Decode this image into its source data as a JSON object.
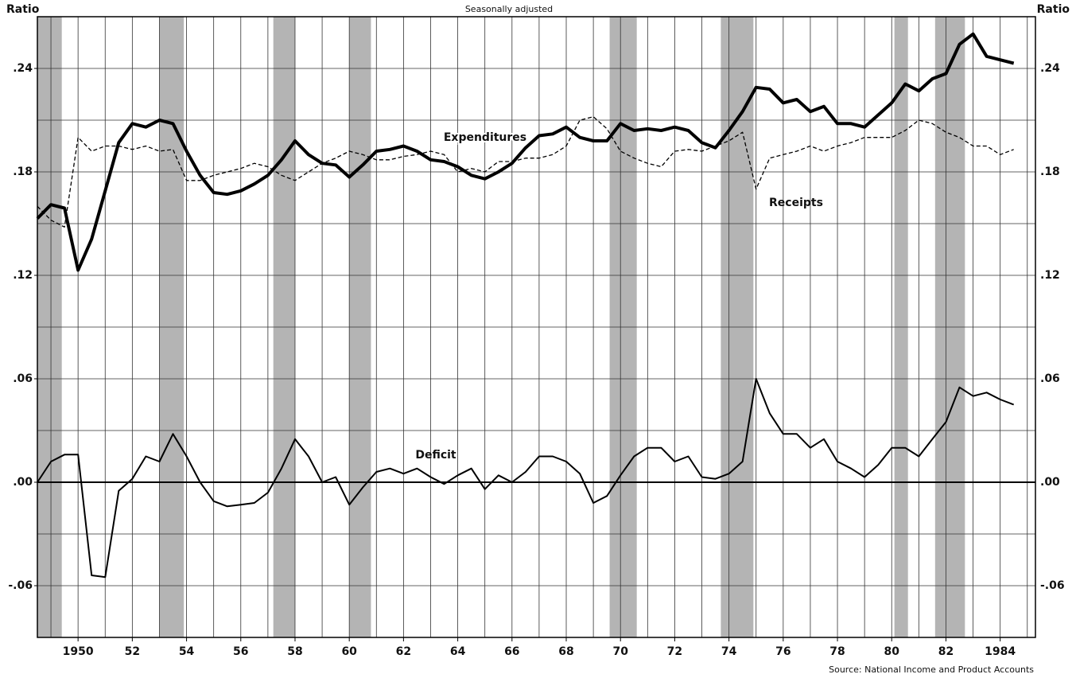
{
  "chart_data": {
    "type": "line",
    "subtitle": "Seasonally adjusted",
    "ylabel": "Ratio",
    "source": "Source: National Income and Product Accounts",
    "annotations": [
      "Expenditures",
      "Receipts",
      "Deficit"
    ],
    "x": [
      1948.5,
      1949,
      1949.5,
      1950,
      1950.5,
      1951,
      1951.5,
      1952,
      1952.5,
      1953,
      1953.5,
      1954,
      1954.5,
      1955,
      1955.5,
      1956,
      1956.5,
      1957,
      1957.5,
      1958,
      1958.5,
      1959,
      1959.5,
      1960,
      1960.5,
      1961,
      1961.5,
      1962,
      1962.5,
      1963,
      1963.5,
      1964,
      1964.5,
      1965,
      1965.5,
      1966,
      1966.5,
      1967,
      1967.5,
      1968,
      1968.5,
      1969,
      1969.5,
      1970,
      1970.5,
      1971,
      1971.5,
      1972,
      1972.5,
      1973,
      1973.5,
      1974,
      1974.5,
      1975,
      1975.5,
      1976,
      1976.5,
      1977,
      1977.5,
      1978,
      1978.5,
      1979,
      1979.5,
      1980,
      1980.5,
      1981,
      1981.5,
      1982,
      1982.5,
      1983,
      1983.5,
      1984,
      1984.5
    ],
    "series": [
      {
        "name": "Expenditures",
        "color": "#000000",
        "line_style": "thick",
        "values": [
          0.153,
          0.161,
          0.159,
          0.123,
          0.141,
          0.169,
          0.197,
          0.208,
          0.206,
          0.21,
          0.208,
          0.192,
          0.178,
          0.168,
          0.167,
          0.169,
          0.173,
          0.178,
          0.187,
          0.198,
          0.19,
          0.185,
          0.184,
          0.177,
          0.184,
          0.192,
          0.193,
          0.195,
          0.192,
          0.187,
          0.186,
          0.183,
          0.178,
          0.176,
          0.18,
          0.185,
          0.194,
          0.201,
          0.202,
          0.206,
          0.2,
          0.198,
          0.198,
          0.208,
          0.204,
          0.205,
          0.204,
          0.206,
          0.204,
          0.197,
          0.194,
          0.204,
          0.215,
          0.229,
          0.228,
          0.22,
          0.222,
          0.215,
          0.218,
          0.208,
          0.208,
          0.206,
          0.213,
          0.22,
          0.231,
          0.227,
          0.234,
          0.237,
          0.254,
          0.26,
          0.247,
          0.245,
          0.243
        ]
      },
      {
        "name": "Receipts",
        "color": "#000000",
        "line_style": "dashed",
        "values": [
          0.16,
          0.152,
          0.148,
          0.2,
          0.192,
          0.195,
          0.195,
          0.193,
          0.195,
          0.192,
          0.193,
          0.175,
          0.175,
          0.178,
          0.18,
          0.182,
          0.185,
          0.183,
          0.178,
          0.175,
          0.18,
          0.185,
          0.188,
          0.192,
          0.19,
          0.187,
          0.187,
          0.189,
          0.19,
          0.192,
          0.19,
          0.18,
          0.182,
          0.18,
          0.186,
          0.186,
          0.188,
          0.188,
          0.19,
          0.195,
          0.21,
          0.212,
          0.205,
          0.192,
          0.188,
          0.185,
          0.183,
          0.192,
          0.193,
          0.192,
          0.195,
          0.198,
          0.203,
          0.17,
          0.188,
          0.19,
          0.192,
          0.195,
          0.192,
          0.195,
          0.197,
          0.2,
          0.2,
          0.2,
          0.204,
          0.21,
          0.208,
          0.203,
          0.2,
          0.195,
          0.195,
          0.19,
          0.193
        ]
      },
      {
        "name": "Deficit",
        "color": "#000000",
        "line_style": "solid",
        "values": [
          0,
          0.012,
          0.016,
          0.016,
          -0.054,
          -0.055,
          -0.005,
          0.002,
          0.015,
          0.012,
          0.028,
          0.015,
          0,
          -0.011,
          -0.014,
          -0.013,
          -0.012,
          -0.006,
          0.008,
          0.025,
          0.015,
          0,
          0.003,
          -0.013,
          -0.003,
          0.006,
          0.008,
          0.005,
          0.008,
          0.003,
          -0.001,
          0.004,
          0.008,
          -0.004,
          0.004,
          0,
          0.006,
          0.015,
          0.015,
          0.012,
          0.005,
          -0.012,
          -0.008,
          0.004,
          0.015,
          0.02,
          0.02,
          0.012,
          0.015,
          0.003,
          0.002,
          0.005,
          0.012,
          0.06,
          0.04,
          0.028,
          0.028,
          0.02,
          0.025,
          0.012,
          0.008,
          0.003,
          0.01,
          0.02,
          0.02,
          0.015,
          0.025,
          0.035,
          0.055,
          0.05,
          0.052,
          0.048,
          0.045
        ]
      }
    ],
    "xlim": [
      1948.5,
      1985.3
    ],
    "ylim": [
      -0.09,
      0.27
    ],
    "xticks": [
      1950,
      {
        "value": 1952,
        "label": "52"
      },
      {
        "value": 1954,
        "label": "54"
      },
      {
        "value": 1956,
        "label": "56"
      },
      {
        "value": 1958,
        "label": "58"
      },
      {
        "value": 1960,
        "label": "60"
      },
      {
        "value": 1962,
        "label": "62"
      },
      {
        "value": 1964,
        "label": "64"
      },
      {
        "value": 1966,
        "label": "66"
      },
      {
        "value": 1968,
        "label": "68"
      },
      {
        "value": 1970,
        "label": "70"
      },
      {
        "value": 1972,
        "label": "72"
      },
      {
        "value": 1974,
        "label": "74"
      },
      {
        "value": 1976,
        "label": "76"
      },
      {
        "value": 1978,
        "label": "78"
      },
      {
        "value": 1980,
        "label": "80"
      },
      {
        "value": 1982,
        "label": "82"
      },
      1984
    ],
    "yticks": [
      {
        "value": -0.06,
        "label": "-.06"
      },
      {
        "value": 0,
        "label": ".00"
      },
      {
        "value": 0.06,
        "label": ".06"
      },
      {
        "value": 0.12,
        "label": ".12"
      },
      {
        "value": 0.18,
        "label": ".18"
      },
      {
        "value": 0.24,
        "label": ".24"
      }
    ],
    "xgrid": [
      1949,
      1950,
      1951,
      1952,
      1953,
      1954,
      1955,
      1956,
      1957,
      1958,
      1959,
      1960,
      1961,
      1962,
      1963,
      1964,
      1965,
      1966,
      1967,
      1968,
      1969,
      1970,
      1971,
      1972,
      1973,
      1974,
      1975,
      1976,
      1977,
      1978,
      1979,
      1980,
      1981,
      1982,
      1983,
      1984,
      1985
    ],
    "ygrid": [
      -0.09,
      -0.06,
      -0.03,
      0,
      0.03,
      0.06,
      0.09,
      0.12,
      0.15,
      0.18,
      0.21,
      0.24,
      0.27
    ],
    "shaded_periods": [
      [
        1948.5,
        1949.4
      ],
      [
        1953.0,
        1953.9
      ],
      [
        1957.2,
        1958.0
      ],
      [
        1960.0,
        1960.8
      ],
      [
        1969.6,
        1970.6
      ],
      [
        1973.7,
        1974.9
      ],
      [
        1980.1,
        1980.6
      ],
      [
        1981.6,
        1982.7
      ]
    ],
    "shade_color": "#b4b4b4",
    "grid": true
  }
}
